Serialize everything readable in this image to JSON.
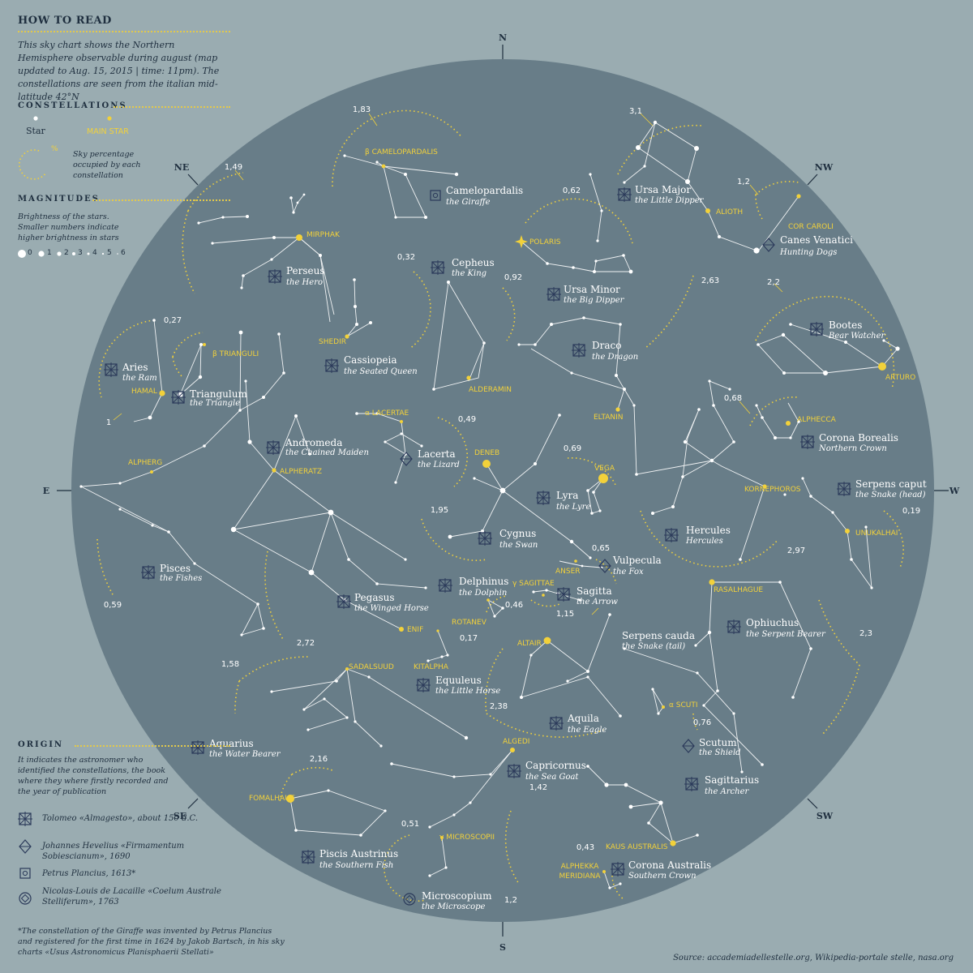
{
  "legend": {
    "title": "HOW TO READ",
    "intro": "This sky chart shows the Northern Hemisphere observable during august (map updated to Aug. 15, 2015 | time: 11pm). The constellations are seen from the italian mid-latitude 42°N",
    "constellations_heading": "CONSTELLATIONS",
    "star_label": "Star",
    "main_star_label": "MAIN STAR",
    "percent_symbol": "%",
    "percent_desc": "Sky percentage occupied by each constellation",
    "magnitudes_heading": "MAGNITUDES",
    "magnitudes_desc": "Brightness of the stars. Smaller numbers indicate higher brightness in stars",
    "magnitudes": [
      "0",
      "1",
      "2",
      "3",
      "4",
      "5",
      "6"
    ],
    "origin_heading": "ORIGIN",
    "origin_desc": "It indicates the astronomer who identified the constellations, the book where they where firstly recorded and the year of publication",
    "origins": [
      {
        "icon": "tolomeo-icon",
        "text": "Tolomeo «Almagesto», about 150 d.C."
      },
      {
        "icon": "hevelius-icon",
        "text": "Johannes Hevelius «Firmamentum Sobiescianum», 1690"
      },
      {
        "icon": "plancius-icon",
        "text": "Petrus Plancius, 1613*"
      },
      {
        "icon": "lacaille-icon",
        "text": "Nicolas-Louis de Lacaille «Coelum Australe Stelliferum», 1763"
      }
    ]
  },
  "footnote": "*The constellation of the Giraffe was invented by Petrus Plancius and registered for the first time in 1624 by Jakob Bartsch, in his sky charts «Usus Astronomicus Planisphaerii Stellati»",
  "source": "Source: accademiadellestelle.org, Wikipedia-portale stelle, nasa.org",
  "colors": {
    "background": "#9aacb1",
    "sky": "#687d88",
    "accent": "#f2d13a",
    "dark": "#2b3a5a",
    "line": "#ffffff"
  },
  "compass": [
    {
      "label": "N"
    },
    {
      "label": "NE"
    },
    {
      "label": "E"
    },
    {
      "label": "SE"
    },
    {
      "label": "S"
    },
    {
      "label": "SW"
    },
    {
      "label": "W"
    },
    {
      "label": "NW"
    }
  ],
  "constellations": [
    {
      "name": "Camelopardalis",
      "sub": "the Giraffe",
      "origin": "plancius",
      "pct": "1,83",
      "main_star": "β CAMELOPARDALIS"
    },
    {
      "name": "Perseus",
      "sub": "the Hero",
      "origin": "tolomeo",
      "pct": "1,49",
      "main_star": "MIRPHAK"
    },
    {
      "name": "Ursa Major",
      "sub": "the Little Dipper",
      "origin": "tolomeo",
      "pct": "3,1",
      "main_star": "ALIOTH"
    },
    {
      "name": "Canes Venatici",
      "sub": "Hunting Dogs",
      "origin": "hevelius",
      "pct": "1,2",
      "main_star": "COR CAROLI"
    },
    {
      "name": "Ursa Minor",
      "sub": "the Big Dipper",
      "origin": "tolomeo",
      "pct": "0,62",
      "main_star": "POLARIS"
    },
    {
      "name": "Cepheus",
      "sub": "the King",
      "origin": "tolomeo",
      "pct": "0,92",
      "main_star": "ALDERAMIN"
    },
    {
      "name": "Cassiopeia",
      "sub": "the Seated Queen",
      "origin": "tolomeo",
      "pct": "0,32",
      "main_star": "SHEDIR"
    },
    {
      "name": "Draco",
      "sub": "the Dragon",
      "origin": "tolomeo",
      "pct": "2,63",
      "main_star": "ELTANIN"
    },
    {
      "name": "Bootes",
      "sub": "Bear Watcher",
      "origin": "tolomeo",
      "pct": "2,2",
      "main_star": "ARTURO"
    },
    {
      "name": "Aries",
      "sub": "the Ram",
      "origin": "tolomeo",
      "pct": "1",
      "main_star": "HAMAL"
    },
    {
      "name": "Triangulum",
      "sub": "the Triangle",
      "origin": "tolomeo",
      "pct": "0,27",
      "main_star": "β TRIANGULI"
    },
    {
      "name": "Andromeda",
      "sub": "the Chained Maiden",
      "origin": "tolomeo",
      "pct": "",
      "main_star": "ALPHERATZ"
    },
    {
      "name": "Lacerta",
      "sub": "the Lizard",
      "origin": "hevelius",
      "pct": "0,49",
      "main_star": "α LACERTAE"
    },
    {
      "name": "Corona Borealis",
      "sub": "Northern Crown",
      "origin": "tolomeo",
      "pct": "0,68",
      "main_star": "ALPHECCA"
    },
    {
      "name": "Serpens caput",
      "sub": "the Snake (head)",
      "origin": "tolomeo",
      "pct": "0,19",
      "main_star": "UNUKALHAI"
    },
    {
      "name": "Lyra",
      "sub": "the Lyre",
      "origin": "tolomeo",
      "pct": "0,69",
      "main_star": "VEGA"
    },
    {
      "name": "Cygnus",
      "sub": "the Swan",
      "origin": "tolomeo",
      "pct": "1,95",
      "main_star": "DENEB"
    },
    {
      "name": "Hercules",
      "sub": "Hercules",
      "origin": "tolomeo",
      "pct": "2,97",
      "main_star": "KORNEPHOROS"
    },
    {
      "name": "Vulpecula",
      "sub": "the Fox",
      "origin": "hevelius",
      "pct": "0,65",
      "main_star": "ANSER"
    },
    {
      "name": "Pisces",
      "sub": "the Fishes",
      "origin": "tolomeo",
      "pct": "0,59",
      "main_star": "ALPHERG"
    },
    {
      "name": "Delphinus",
      "sub": "the Dolphin",
      "origin": "tolomeo",
      "pct": "0,46",
      "main_star": "ROTANEV"
    },
    {
      "name": "Sagitta",
      "sub": "the Arrow",
      "origin": "tolomeo",
      "pct": "1,15",
      "main_star": "γ SAGITTAE"
    },
    {
      "name": "Pegasus",
      "sub": "the Winged Horse",
      "origin": "tolomeo",
      "pct": "2,72",
      "main_star": "ENIF"
    },
    {
      "name": "Ophiuchus",
      "sub": "the Serpent Bearer",
      "origin": "tolomeo",
      "pct": "2,3",
      "main_star": "RASALHAGUE"
    },
    {
      "name": "Serpens cauda",
      "sub": "the Snake (tail)",
      "origin": "tolomeo",
      "pct": "",
      "main_star": ""
    },
    {
      "name": "Equuleus",
      "sub": "the Little Horse",
      "origin": "tolomeo",
      "pct": "0,17",
      "main_star": "KITALPHA"
    },
    {
      "name": "Aquila",
      "sub": "the Eagle",
      "origin": "tolomeo",
      "pct": "2,38",
      "main_star": "ALTAIR"
    },
    {
      "name": "Scutum",
      "sub": "the Shield",
      "origin": "hevelius",
      "pct": "0,76",
      "main_star": "α SCUTI"
    },
    {
      "name": "Aquarius",
      "sub": "the Water Bearer",
      "origin": "tolomeo",
      "pct": "1,58",
      "main_star": "SADALSUUD"
    },
    {
      "name": "Capricornus",
      "sub": "the Sea Goat",
      "origin": "tolomeo",
      "pct": "1,42",
      "main_star": "ALGEDI"
    },
    {
      "name": "Sagittarius",
      "sub": "the Archer",
      "origin": "tolomeo",
      "pct": "",
      "main_star": "KAUS AUSTRALIS"
    },
    {
      "name": "Piscis Austrinus",
      "sub": "the Southern Fish",
      "origin": "tolomeo",
      "pct": "2,16",
      "main_star": "FOMALHAUT"
    },
    {
      "name": "Corona Australis",
      "sub": "Southern Crown",
      "origin": "tolomeo",
      "pct": "0,43",
      "main_star": "ALPHEKKA MERIDIANA"
    },
    {
      "name": "Microscopium",
      "sub": "the Microscope",
      "origin": "lacaille",
      "pct": "0,51",
      "main_star": "γ MICROSCOPII"
    },
    {
      "name": "",
      "sub": "",
      "origin": "",
      "pct": "1,2",
      "main_star": ""
    }
  ]
}
